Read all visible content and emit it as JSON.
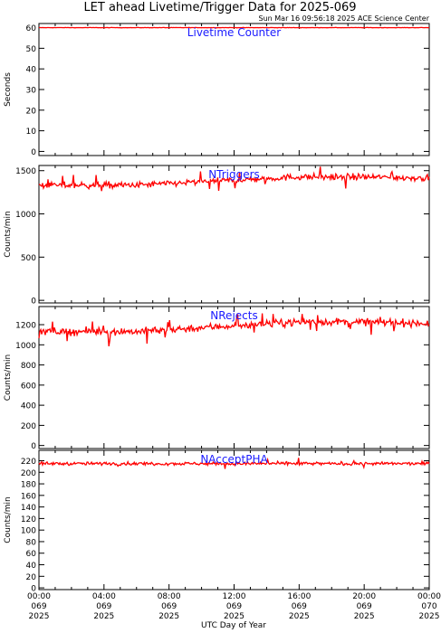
{
  "title": "LET ahead Livetime/Trigger Data for 2025-069",
  "timestamp": "Sun Mar 16 09:56:18 2025 ACE Science Center",
  "xlabel": "UTC Day of Year",
  "colors": {
    "line": "#ff0000",
    "label": "#1a1aff",
    "axis": "#000000"
  },
  "chart_data": [
    {
      "type": "line",
      "label": "Livetime Counter",
      "ylabel": "Seconds",
      "ylim": [
        -2,
        62
      ],
      "yticks": [
        0,
        10,
        20,
        30,
        40,
        50,
        60
      ],
      "baseline": 60,
      "noise": 0.1,
      "spike_rate": 0,
      "trend": "flat"
    },
    {
      "type": "line",
      "label": "NTriggers",
      "ylabel": "Counts/min",
      "ylim": [
        -30,
        1560
      ],
      "yticks": [
        0,
        500,
        1000,
        1500
      ],
      "baseline": 1380,
      "noise": 40,
      "spike_rate": 0.04,
      "trend": "slow rise mid-day, ~1350 to ~1450"
    },
    {
      "type": "line",
      "label": "NRejects",
      "ylabel": "Counts/min",
      "ylim": [
        -30,
        1380
      ],
      "yticks": [
        0,
        200,
        400,
        600,
        800,
        1000,
        1200
      ],
      "baseline": 1180,
      "noise": 40,
      "spike_rate": 0.04,
      "trend": "slow rise mid-day, ~1150 to ~1250"
    },
    {
      "type": "line",
      "label": "NAcceptPHA",
      "ylabel": "Counts/min",
      "ylim": [
        -3,
        238
      ],
      "yticks": [
        0,
        20,
        40,
        60,
        80,
        100,
        120,
        140,
        160,
        180,
        200,
        220
      ],
      "baseline": 215,
      "noise": 3,
      "spike_rate": 0.02,
      "trend": "flat ~215"
    }
  ],
  "x_axis": {
    "range_hours": [
      0,
      24
    ],
    "ticks": [
      {
        "hour": 0,
        "time": "00:00",
        "doy": "069",
        "year": "2025"
      },
      {
        "hour": 4,
        "time": "04:00",
        "doy": "069",
        "year": "2025"
      },
      {
        "hour": 8,
        "time": "08:00",
        "doy": "069",
        "year": "2025"
      },
      {
        "hour": 12,
        "time": "12:00",
        "doy": "069",
        "year": "2025"
      },
      {
        "hour": 16,
        "time": "16:00",
        "doy": "069",
        "year": "2025"
      },
      {
        "hour": 20,
        "time": "20:00",
        "doy": "069",
        "year": "2025"
      },
      {
        "hour": 24,
        "time": "00:00",
        "doy": "070",
        "year": "2025"
      }
    ]
  }
}
